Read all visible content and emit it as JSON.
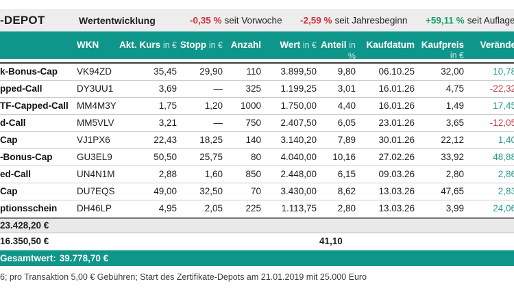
{
  "colors": {
    "teal": "#0f968a",
    "bar_bg": "#ededed",
    "negative": "#d42f3d",
    "positive": "#149e61",
    "table_positive": "#2a9d8f",
    "table_negative": "#c8414c"
  },
  "header": {
    "title": "-DEPOT",
    "subtitle": "Wertentwicklung",
    "stats": [
      {
        "value": "-0,35 %",
        "label": "seit Vorwoche",
        "trend": "negative"
      },
      {
        "value": "-2,59 %",
        "label": "seit Jahresbeginn",
        "trend": "negative"
      },
      {
        "value": "+59,11 %",
        "label": "seit Auflage",
        "trend": "positive"
      }
    ]
  },
  "table": {
    "columns": [
      {
        "label": "",
        "unit": ""
      },
      {
        "label": "WKN",
        "unit": ""
      },
      {
        "label": "Akt. Kurs",
        "unit": "in €"
      },
      {
        "label": "Stopp",
        "unit": "in €"
      },
      {
        "label": "Anzahl",
        "unit": ""
      },
      {
        "label": "Wert",
        "unit": "in €"
      },
      {
        "label": "Anteil",
        "unit": "in %"
      },
      {
        "label": "Kaufdatum",
        "unit": ""
      },
      {
        "label": "Kaufpreis",
        "unit": "in €"
      },
      {
        "label": "Verände",
        "unit": ""
      }
    ],
    "rows": [
      {
        "product": "k-Bonus-Cap",
        "wkn": "VK94ZD",
        "kurs": "35,45",
        "stopp": "29,90",
        "anzahl": "110",
        "wert": "3.899,50",
        "anteil": "9,80",
        "kaufdatum": "06.10.25",
        "kaufpreis": "32,00",
        "veraenderung": "10,78",
        "trend": "positive"
      },
      {
        "product": "pped-Call",
        "wkn": "DY3UU1",
        "kurs": "3,69",
        "stopp": "—",
        "anzahl": "325",
        "wert": "1.199,25",
        "anteil": "3,01",
        "kaufdatum": "16.01.26",
        "kaufpreis": "4,75",
        "veraenderung": "-22,32",
        "trend": "negative"
      },
      {
        "product": "TF-Capped-Call",
        "wkn": "MM4M3Y",
        "kurs": "1,75",
        "stopp": "1,20",
        "anzahl": "1000",
        "wert": "1.750,00",
        "anteil": "4,40",
        "kaufdatum": "16.01.26",
        "kaufpreis": "1,49",
        "veraenderung": "17,45",
        "trend": "positive"
      },
      {
        "product": "d-Call",
        "wkn": "MM5VLV",
        "kurs": "3,21",
        "stopp": "—",
        "anzahl": "750",
        "wert": "2.407,50",
        "anteil": "6,05",
        "kaufdatum": "23.01.26",
        "kaufpreis": "3,65",
        "veraenderung": "-12,05",
        "trend": "negative"
      },
      {
        "product": "Cap",
        "wkn": "VJ1PX6",
        "kurs": "22,43",
        "stopp": "18,25",
        "anzahl": "140",
        "wert": "3.140,20",
        "anteil": "7,89",
        "kaufdatum": "30.01.26",
        "kaufpreis": "22,12",
        "veraenderung": "1,40",
        "trend": "positive"
      },
      {
        "product": "-Bonus-Cap",
        "wkn": "GU3EL9",
        "kurs": "50,50",
        "stopp": "25,75",
        "anzahl": "80",
        "wert": "4.040,00",
        "anteil": "10,16",
        "kaufdatum": "27.02.26",
        "kaufpreis": "33,92",
        "veraenderung": "48,88",
        "trend": "positive"
      },
      {
        "product": "ed-Call",
        "wkn": "UN4N1M",
        "kurs": "2,88",
        "stopp": "1,60",
        "anzahl": "850",
        "wert": "2.448,00",
        "anteil": "6,15",
        "kaufdatum": "09.03.26",
        "kaufpreis": "2,80",
        "veraenderung": "2,86",
        "trend": "positive"
      },
      {
        "product": "Cap",
        "wkn": "DU7EQS",
        "kurs": "49,00",
        "stopp": "32,50",
        "anzahl": "70",
        "wert": "3.430,00",
        "anteil": "8,62",
        "kaufdatum": "13.03.26",
        "kaufpreis": "47,65",
        "veraenderung": "2,83",
        "trend": "positive"
      },
      {
        "product": "ptionsschein",
        "wkn": "DH46LP",
        "kurs": "4,95",
        "stopp": "2,05",
        "anzahl": "225",
        "wert": "1.113,75",
        "anteil": "2,80",
        "kaufdatum": "13.03.26",
        "kaufpreis": "3,99",
        "veraenderung": "24,06",
        "trend": "positive"
      }
    ]
  },
  "totals": {
    "positions_value": "23.428,20 €",
    "cash_value": "16.350,50 €",
    "cash_anteil": "41,10",
    "total_label": "Gesamtwert:",
    "total_value": "39.778,70 €"
  },
  "footnote": "6; pro Transaktion 5,00 € Gebühren; Start des Zertifikate-Depots am 21.01.2019 mit 25.000 Euro"
}
